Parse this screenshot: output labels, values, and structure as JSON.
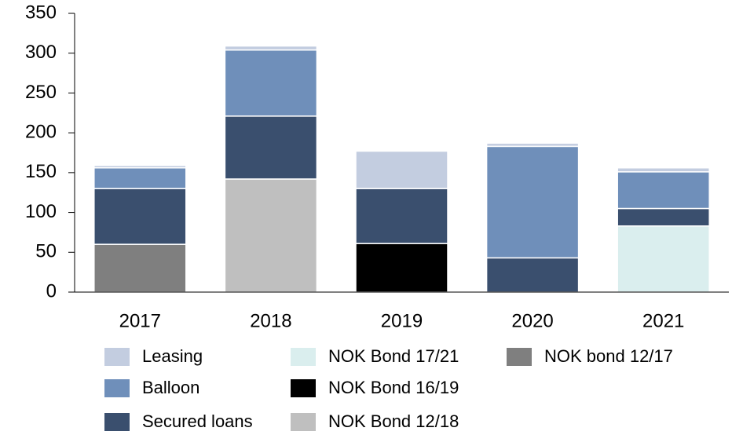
{
  "chart_data": {
    "type": "stacked_bar",
    "categories": [
      "2017",
      "2018",
      "2019",
      "2020",
      "2021"
    ],
    "series": [
      {
        "name": "Leasing",
        "color": "#c3cde0",
        "values": [
          3,
          5,
          47,
          4,
          5
        ]
      },
      {
        "name": "Balloon",
        "color": "#6f8fba",
        "values": [
          26,
          83,
          0,
          140,
          46
        ]
      },
      {
        "name": "Secured loans",
        "color": "#3a4f6e",
        "values": [
          70,
          79,
          69,
          43,
          22
        ]
      },
      {
        "name": "NOK Bond 17/21",
        "color": "#daeeee",
        "values": [
          0,
          0,
          0,
          0,
          83
        ]
      },
      {
        "name": "NOK Bond 16/19",
        "color": "#000000",
        "values": [
          0,
          0,
          61,
          0,
          0
        ]
      },
      {
        "name": "NOK Bond 12/18",
        "color": "#bfbfbf",
        "values": [
          0,
          142,
          0,
          0,
          0
        ]
      },
      {
        "name": "NOK bond 12/17",
        "color": "#7f7f7f",
        "values": [
          60,
          0,
          0,
          0,
          0
        ]
      }
    ],
    "ylim": [
      0,
      350
    ],
    "yticks": [
      0,
      50,
      100,
      150,
      200,
      250,
      300,
      350
    ],
    "grid": false
  }
}
